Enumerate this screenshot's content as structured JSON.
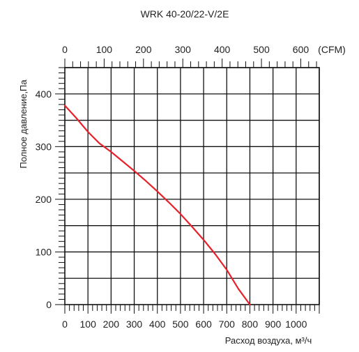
{
  "chart_data": {
    "type": "line",
    "title": "WRK 40-20/22-V/2E",
    "ylabel": "Полное давление,Па",
    "xlabel": "Расход воздуха, м³/ч",
    "x_units_top": "(CFM)",
    "xlim": [
      0,
      1100
    ],
    "ylim": [
      0,
      450
    ],
    "xlim_cfm": [
      0,
      647
    ],
    "x_ticks": [
      0,
      100,
      200,
      300,
      400,
      500,
      600,
      700,
      800,
      900,
      1000
    ],
    "x_tick_labels": [
      "0",
      "100",
      "200",
      "300",
      "400",
      "500",
      "600",
      "700",
      "800",
      "900",
      "1000"
    ],
    "x_top_ticks": [
      0,
      100,
      200,
      300,
      400,
      500,
      600
    ],
    "x_top_tick_labels": [
      "0",
      "100",
      "200",
      "300",
      "400",
      "500",
      "600"
    ],
    "y_ticks": [
      0,
      100,
      200,
      300,
      400
    ],
    "y_tick_labels": [
      "0",
      "100",
      "200",
      "300",
      "400"
    ],
    "grid": true,
    "series": [
      {
        "color": "#e8202a",
        "x": [
          0,
          50,
          100,
          150,
          200,
          250,
          300,
          350,
          400,
          450,
          500,
          550,
          600,
          650,
          700,
          750,
          800
        ],
        "y": [
          378,
          354,
          328,
          306,
          290,
          272,
          254,
          235,
          215,
          194,
          172,
          148,
          123,
          96,
          66,
          30,
          0
        ]
      }
    ]
  }
}
